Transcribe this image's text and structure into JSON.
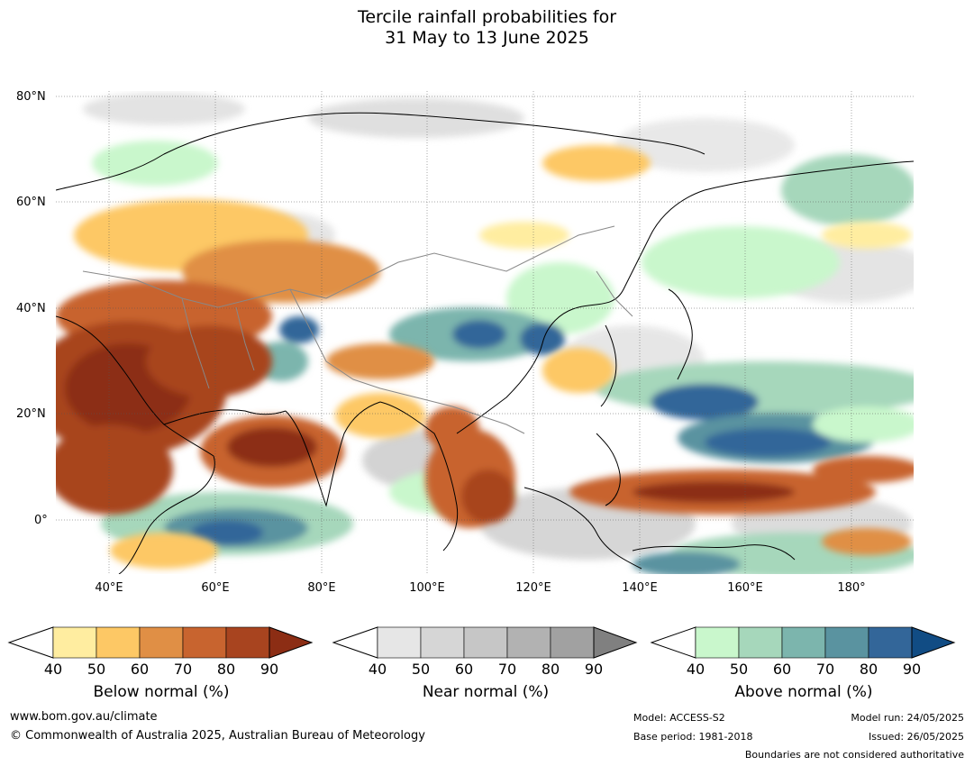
{
  "title": {
    "line1": "Tercile rainfall probabilities for",
    "line2": "31 May to 13 June 2025"
  },
  "map": {
    "y_ticks": [
      "80°N",
      "60°N",
      "40°N",
      "20°N",
      "0°"
    ],
    "x_ticks": [
      "40°E",
      "60°E",
      "80°E",
      "100°E",
      "120°E",
      "140°E",
      "160°E",
      "180°"
    ],
    "lat_range": [
      -10,
      80
    ],
    "lon_range": [
      30,
      192
    ]
  },
  "legends": {
    "below": {
      "title": "Below normal (%)",
      "ticks": [
        "40",
        "50",
        "60",
        "70",
        "80",
        "90"
      ],
      "colors": [
        "#ffeda0",
        "#fdc865",
        "#e08f45",
        "#c8642f",
        "#a8441f",
        "#8c2d14"
      ]
    },
    "near": {
      "title": "Near normal (%)",
      "ticks": [
        "40",
        "50",
        "60",
        "70",
        "80",
        "90"
      ],
      "colors": [
        "#e6e6e6",
        "#d6d6d6",
        "#c6c6c6",
        "#b2b2b2",
        "#a1a1a1",
        "#808080"
      ]
    },
    "above": {
      "title": "Above normal (%)",
      "ticks": [
        "40",
        "50",
        "60",
        "70",
        "80",
        "90"
      ],
      "colors": [
        "#c9f7cc",
        "#a6d7bb",
        "#7cb5ad",
        "#5a93a0",
        "#336699",
        "#114c84"
      ]
    }
  },
  "footer": {
    "website": "www.bom.gov.au/climate",
    "copyright": "© Commonwealth of Australia 2025, Australian Bureau of Meteorology",
    "model": "Model: ACCESS-S2",
    "base_period": "Base period: 1981-2018",
    "model_run": "Model run: 24/05/2025",
    "issued": "Issued: 26/05/2025",
    "disclaimer": "Boundaries are not considered authoritative"
  }
}
